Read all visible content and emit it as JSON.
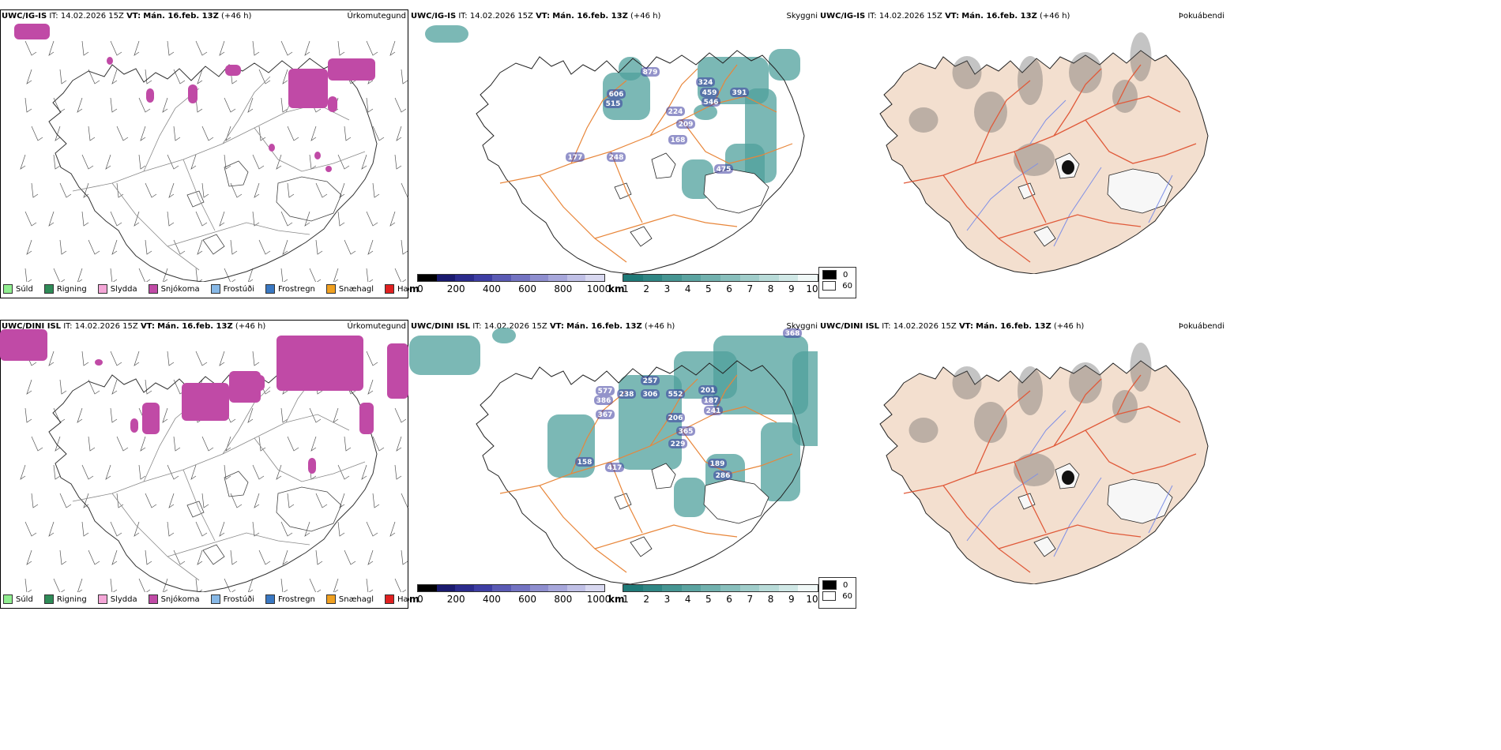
{
  "rows": [
    {
      "model": "UWC/IG-IS",
      "it_label": "IT:",
      "it_value": "14.02.2026 15Z",
      "vt_label": "VT:",
      "vt_value": "Mán. 16.feb. 13Z",
      "lead": "(+46 h)",
      "precip_type_title": "Úrkomutegund",
      "visibility_title": "Skyggni",
      "fog_title": "Þokuábendi",
      "cloud_labels": [
        "879",
        "324",
        "459",
        "546",
        "391",
        "606",
        "515",
        "224",
        "209",
        "168",
        "177",
        "248",
        "475"
      ]
    },
    {
      "model": "UWC/DINI ISL",
      "it_label": "IT:",
      "it_value": "14.02.2026 15Z",
      "vt_label": "VT:",
      "vt_value": "Mán. 16.feb. 13Z",
      "lead": "(+46 h)",
      "precip_type_title": "Úrkomutegund",
      "visibility_title": "Skyggni",
      "fog_title": "Þokuábendi",
      "cloud_labels": [
        "257",
        "577",
        "386",
        "238",
        "306",
        "552",
        "201",
        "187",
        "241",
        "367",
        "206",
        "365",
        "229",
        "158",
        "417",
        "189",
        "286",
        "368"
      ]
    }
  ],
  "precip_legend": [
    {
      "label": "Súld",
      "color": "#90ee90"
    },
    {
      "label": "Rigning",
      "color": "#2e8b57"
    },
    {
      "label": "Slydda",
      "color": "#f4a6d7"
    },
    {
      "label": "Snjókoma",
      "color": "#c04aa6"
    },
    {
      "label": "Frostúði",
      "color": "#87b8e6"
    },
    {
      "label": "Frostregn",
      "color": "#3a78c2"
    },
    {
      "label": "Snæhagl",
      "color": "#f0a020"
    },
    {
      "label": "Haglél",
      "color": "#e02020"
    }
  ],
  "cloudbase_bar": {
    "unit": "m",
    "ticks": [
      "0",
      "200",
      "400",
      "600",
      "800",
      "1000"
    ],
    "colors": [
      "#000000",
      "#1a1a6e",
      "#2b2b8c",
      "#3e3ea3",
      "#5a5ab4",
      "#7373c2",
      "#8e8ecf",
      "#a7a7db",
      "#c0c0e6",
      "#d8d8f0"
    ]
  },
  "visibility_bar": {
    "unit": "km",
    "ticks": [
      "1",
      "2",
      "3",
      "4",
      "5",
      "6",
      "7",
      "8",
      "9",
      "10"
    ],
    "colors": [
      "#1f7a78",
      "#2f8684",
      "#459592",
      "#5aa3a0",
      "#71b1ae",
      "#88bfbc",
      "#a0cdca",
      "#b8dbd8",
      "#d0e8e6",
      "#f0f8f7"
    ]
  },
  "fog_legend": {
    "items": [
      {
        "label": "0",
        "color": "#000000"
      },
      {
        "label": "60",
        "color": "#ffffff"
      }
    ]
  }
}
